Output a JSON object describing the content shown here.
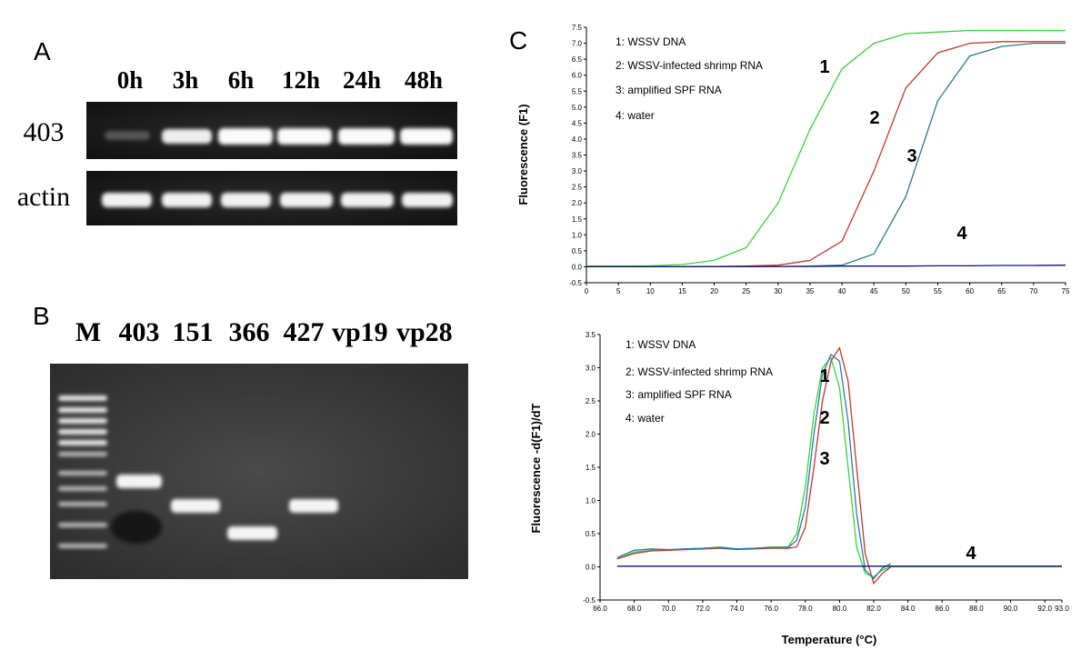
{
  "panel_a": {
    "label": "A",
    "lanes": [
      "0h",
      "3h",
      "6h",
      "12h",
      "24h",
      "48h"
    ],
    "rows": [
      "403",
      "actin"
    ]
  },
  "panel_b": {
    "label": "B",
    "lanes": [
      "M",
      "403",
      "151",
      "366",
      "427",
      "vp19",
      "vp28"
    ]
  },
  "panel_c": {
    "label": "C"
  },
  "chart_data": [
    {
      "type": "line",
      "ylabel": "Fluorescence (F1)",
      "x": [
        0,
        5,
        10,
        15,
        20,
        25,
        30,
        35,
        40,
        45,
        50,
        55,
        60,
        65,
        70,
        75
      ],
      "series": [
        {
          "name": "1: WSSV DNA",
          "color": "#3ccf3c",
          "values": [
            0.02,
            0.02,
            0.03,
            0.07,
            0.2,
            0.6,
            2.0,
            4.3,
            6.2,
            7.0,
            7.3,
            7.35,
            7.4,
            7.4,
            7.4,
            7.4
          ]
        },
        {
          "name": "2: WSSV-infected shrimp RNA",
          "color": "#c0392b",
          "values": [
            0.0,
            0.0,
            0.0,
            0.0,
            0.01,
            0.02,
            0.05,
            0.2,
            0.8,
            3.0,
            5.6,
            6.7,
            7.0,
            7.05,
            7.05,
            7.05
          ]
        },
        {
          "name": "3: amplified SPF RNA",
          "color": "#2a7a8c",
          "values": [
            0.0,
            0.0,
            0.0,
            0.0,
            0.0,
            0.0,
            0.01,
            0.02,
            0.05,
            0.4,
            2.2,
            5.2,
            6.6,
            6.9,
            7.0,
            7.0
          ]
        },
        {
          "name": "4: water",
          "color": "#10107a",
          "values": [
            0.0,
            0.0,
            0.0,
            0.0,
            0.01,
            0.01,
            0.01,
            0.01,
            0.02,
            0.02,
            0.02,
            0.03,
            0.03,
            0.04,
            0.04,
            0.05
          ]
        }
      ],
      "annotations": [
        "1",
        "2",
        "3",
        "4"
      ],
      "xlim": [
        0,
        75
      ],
      "ylim": [
        -0.5,
        7.5
      ],
      "xticks": [
        0,
        5,
        10,
        15,
        20,
        25,
        30,
        35,
        40,
        45,
        50,
        55,
        60,
        65,
        70,
        75
      ],
      "yticks": [
        -0.5,
        {
          "value": 0,
          "label": "0.0"
        },
        0.5,
        {
          "value": 1,
          "label": "1.0"
        },
        1.5,
        {
          "value": 2,
          "label": "2.0"
        },
        2.5,
        {
          "value": 3,
          "label": "3.0"
        },
        3.5,
        {
          "value": 4,
          "label": "4.0"
        },
        4.5,
        {
          "value": 5,
          "label": "5.0"
        },
        5.5,
        {
          "value": 6,
          "label": "6.0"
        },
        6.5,
        {
          "value": 7,
          "label": "7.0"
        },
        7.5
      ]
    },
    {
      "type": "line",
      "ylabel": "Fluorescence -d(F1)/dT",
      "xlabel": "Temperature (°C)",
      "x": [
        67,
        68,
        69,
        70,
        71,
        72,
        73,
        74,
        75,
        76,
        77,
        77.5,
        78,
        78.5,
        79,
        79.5,
        80,
        80.5,
        81,
        81.5,
        82,
        82.5,
        83,
        84,
        86,
        88,
        90,
        92,
        93
      ],
      "series": [
        {
          "name": "1: WSSV DNA",
          "color": "#3ccf3c",
          "values": [
            0.12,
            0.22,
            0.25,
            0.25,
            0.27,
            0.28,
            0.3,
            0.27,
            0.28,
            0.3,
            0.3,
            0.5,
            1.2,
            2.3,
            3.0,
            3.15,
            2.7,
            1.5,
            0.3,
            -0.1,
            -0.15,
            -0.05,
            0.0,
            0.0,
            0.0,
            0.0,
            0.0,
            0.0,
            0.0
          ]
        },
        {
          "name": "2: WSSV-infected shrimp RNA",
          "color": "#c0392b",
          "values": [
            0.12,
            0.2,
            0.24,
            0.25,
            0.26,
            0.27,
            0.28,
            0.26,
            0.27,
            0.28,
            0.28,
            0.3,
            0.6,
            1.5,
            2.5,
            3.1,
            3.3,
            2.8,
            1.5,
            0.2,
            -0.25,
            -0.1,
            0.0,
            null,
            null,
            null,
            null,
            null,
            null
          ]
        },
        {
          "name": "3: amplified SPF RNA",
          "color": "#2a7ab0",
          "values": [
            0.14,
            0.25,
            0.27,
            0.26,
            0.27,
            0.28,
            0.29,
            0.27,
            0.28,
            0.29,
            0.29,
            0.4,
            0.9,
            2.0,
            2.9,
            3.2,
            3.1,
            2.2,
            0.8,
            -0.05,
            -0.18,
            -0.02,
            0.05,
            null,
            null,
            null,
            null,
            null,
            null
          ]
        },
        {
          "name": "4: water",
          "color": "#10107a",
          "values": [
            0.01,
            0.01,
            0.01,
            0.01,
            0.01,
            0.01,
            0.01,
            0.01,
            0.01,
            0.01,
            0.01,
            0.01,
            0.01,
            0.01,
            0.01,
            0.01,
            0.01,
            0.01,
            0.01,
            0.01,
            0.01,
            0.01,
            0.01,
            0.01,
            0.01,
            0.01,
            0.01,
            0.01,
            0.01
          ]
        }
      ],
      "annotations": [
        "1",
        "2",
        "3",
        "4"
      ],
      "xlim": [
        66,
        93
      ],
      "ylim": [
        -0.5,
        3.5
      ],
      "xticks": [
        {
          "value": 66,
          "label": "66.0"
        },
        {
          "value": 68,
          "label": "68.0"
        },
        {
          "value": 70,
          "label": "70.0"
        },
        {
          "value": 72,
          "label": "72.0"
        },
        {
          "value": 74,
          "label": "74.0"
        },
        {
          "value": 76,
          "label": "76.0"
        },
        {
          "value": 78,
          "label": "78.0"
        },
        {
          "value": 80,
          "label": "80.0"
        },
        {
          "value": 82,
          "label": "82.0"
        },
        {
          "value": 84,
          "label": "84.0"
        },
        {
          "value": 86,
          "label": "86.0"
        },
        {
          "value": 88,
          "label": "88.0"
        },
        {
          "value": 90,
          "label": "90.0"
        },
        {
          "value": 92,
          "label": "92.0"
        },
        {
          "value": 93,
          "label": "93.0"
        }
      ],
      "yticks": [
        -0.5,
        {
          "value": 0,
          "label": "0.0"
        },
        0.5,
        {
          "value": 1,
          "label": "1.0"
        },
        1.5,
        {
          "value": 2,
          "label": "2.0"
        },
        2.5,
        {
          "value": 3,
          "label": "3.0"
        },
        3.5
      ]
    }
  ]
}
